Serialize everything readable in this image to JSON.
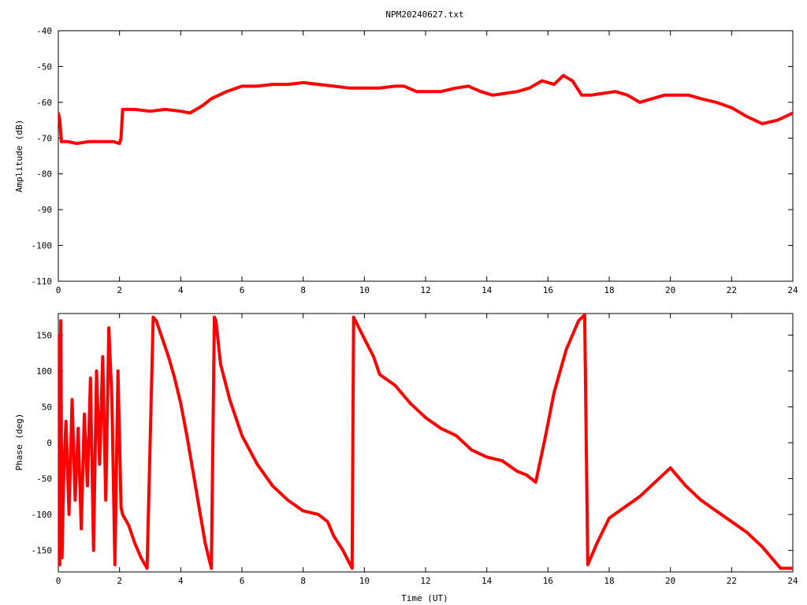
{
  "title": "NPM20240627.txt",
  "colors": {
    "series": "#ff0000",
    "axes": "#000000",
    "background": "#ffffff"
  },
  "chart_data": [
    {
      "type": "line",
      "title": "NPM20240627.txt",
      "xlabel": "",
      "ylabel": "Amplitude (dB)",
      "xlim": [
        0,
        24
      ],
      "ylim": [
        -110,
        -40
      ],
      "xticks": [
        0,
        2,
        4,
        6,
        8,
        10,
        12,
        14,
        16,
        18,
        20,
        22,
        24
      ],
      "yticks": [
        -40,
        -50,
        -60,
        -70,
        -80,
        -90,
        -100,
        -110
      ],
      "grid": false,
      "series": [
        {
          "x": [
            0.0,
            0.05,
            0.1,
            0.3,
            0.6,
            1.0,
            1.4,
            1.8,
            2.0,
            2.05,
            2.1,
            2.5,
            3.0,
            3.5,
            4.0,
            4.3,
            4.7,
            5.0,
            5.5,
            6.0,
            6.5,
            7.0,
            7.5,
            8.0,
            8.5,
            9.0,
            9.5,
            10.0,
            10.5,
            11.0,
            11.3,
            11.7,
            12.0,
            12.5,
            13.0,
            13.4,
            13.8,
            14.2,
            14.6,
            15.0,
            15.4,
            15.8,
            16.2,
            16.5,
            16.8,
            17.1,
            17.4,
            17.8,
            18.2,
            18.6,
            19.0,
            19.4,
            19.8,
            20.2,
            20.6,
            21.0,
            21.5,
            22.0,
            22.5,
            23.0,
            23.5,
            24.0
          ],
          "y": [
            -63,
            -65,
            -71,
            -71,
            -71.5,
            -71,
            -71,
            -71,
            -71.5,
            -70,
            -62,
            -62,
            -62.5,
            -62,
            -62.5,
            -63,
            -61,
            -59,
            -57,
            -55.5,
            -55.5,
            -55,
            -55,
            -54.5,
            -55,
            -55.5,
            -56,
            -56,
            -56,
            -55.5,
            -55.5,
            -57,
            -57,
            -57,
            -56,
            -55.5,
            -57,
            -58,
            -57.5,
            -57,
            -56,
            -54,
            -55,
            -52.5,
            -54,
            -58,
            -58,
            -57.5,
            -57,
            -58,
            -60,
            -59,
            -58,
            -58,
            -58,
            -59,
            -60,
            -61.5,
            -64,
            -66,
            -65,
            -63
          ]
        }
      ]
    },
    {
      "type": "line",
      "title": "",
      "xlabel": "Time (UT)",
      "ylabel": "Phase (deg)",
      "xlim": [
        0,
        24
      ],
      "ylim": [
        -180,
        180
      ],
      "xticks": [
        0,
        2,
        4,
        6,
        8,
        10,
        12,
        14,
        16,
        18,
        20,
        22,
        24
      ],
      "yticks": [
        150,
        100,
        50,
        0,
        -50,
        -100,
        -150
      ],
      "grid": false,
      "series": [
        {
          "x": [
            0.0,
            0.02,
            0.05,
            0.08,
            0.12,
            0.18,
            0.25,
            0.35,
            0.45,
            0.55,
            0.65,
            0.75,
            0.85,
            0.95,
            1.05,
            1.15,
            1.25,
            1.35,
            1.45,
            1.55,
            1.65,
            1.75,
            1.85,
            1.95,
            2.05,
            2.1,
            2.3,
            2.5,
            2.7,
            2.9,
            3.1,
            3.2,
            3.4,
            3.6,
            3.8,
            4.0,
            4.2,
            4.4,
            4.6,
            4.8,
            5.0,
            5.1,
            5.15,
            5.3,
            5.6,
            6.0,
            6.5,
            7.0,
            7.5,
            8.0,
            8.5,
            8.8,
            9.0,
            9.3,
            9.6,
            9.65,
            10.0,
            10.3,
            10.5,
            11.0,
            11.5,
            12.0,
            12.5,
            13.0,
            13.5,
            14.0,
            14.5,
            15.0,
            15.3,
            15.6,
            15.9,
            16.2,
            16.6,
            17.0,
            17.2,
            17.3,
            17.6,
            18.0,
            18.5,
            19.0,
            19.5,
            20.0,
            20.5,
            21.0,
            21.5,
            22.0,
            22.5,
            23.0,
            23.3,
            23.6,
            24.0
          ],
          "y": [
            150,
            130,
            -170,
            170,
            -160,
            -40,
            30,
            -100,
            60,
            -80,
            20,
            -120,
            40,
            -60,
            90,
            -150,
            100,
            -30,
            120,
            -80,
            160,
            60,
            -170,
            100,
            -90,
            -100,
            -115,
            -140,
            -160,
            -175,
            175,
            170,
            145,
            120,
            90,
            55,
            10,
            -40,
            -90,
            -140,
            -175,
            175,
            170,
            110,
            60,
            10,
            -30,
            -60,
            -80,
            -95,
            -100,
            -110,
            -130,
            -150,
            -175,
            175,
            145,
            120,
            95,
            80,
            55,
            35,
            20,
            10,
            -10,
            -20,
            -25,
            -40,
            -45,
            -55,
            5,
            70,
            130,
            170,
            178,
            -170,
            -140,
            -105,
            -90,
            -75,
            -55,
            -35,
            -60,
            -80,
            -95,
            -110,
            -125,
            -145,
            -160,
            -175,
            -175
          ]
        }
      ]
    }
  ]
}
